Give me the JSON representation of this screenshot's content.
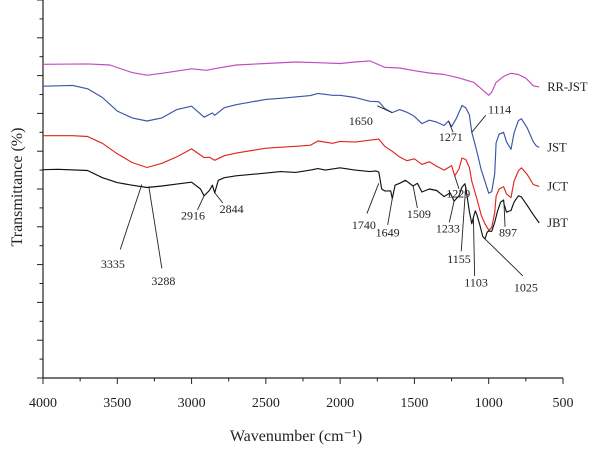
{
  "chart_data": {
    "type": "line",
    "title": "",
    "xlabel": "Wavenumber (cm⁻¹)",
    "ylabel": "Transmittance (%)",
    "xlim": [
      4000,
      500
    ],
    "x_reversed": true,
    "ylim": [
      0,
      100
    ],
    "x_ticks": [
      4000,
      3500,
      3000,
      2500,
      2000,
      1500,
      1000,
      500
    ],
    "y_tick_labels_shown": false,
    "grid": false,
    "legend": "labels-at-right-end",
    "series": [
      {
        "name": "RR-JST",
        "color": "#c34bc1",
        "points": [
          [
            4000,
            83.0
          ],
          [
            3700,
            83.1
          ],
          [
            3550,
            82.8
          ],
          [
            3400,
            80.8
          ],
          [
            3300,
            80.1
          ],
          [
            3200,
            80.6
          ],
          [
            3000,
            81.8
          ],
          [
            2900,
            81.4
          ],
          [
            2850,
            81.8
          ],
          [
            2700,
            82.8
          ],
          [
            2500,
            83.2
          ],
          [
            2300,
            83.6
          ],
          [
            2150,
            83.4
          ],
          [
            2000,
            83.2
          ],
          [
            1900,
            83.6
          ],
          [
            1800,
            83.9
          ],
          [
            1700,
            82.2
          ],
          [
            1600,
            82.0
          ],
          [
            1500,
            81.3
          ],
          [
            1400,
            80.7
          ],
          [
            1300,
            80.3
          ],
          [
            1200,
            79.4
          ],
          [
            1100,
            78.2
          ],
          [
            1050,
            76.5
          ],
          [
            1000,
            74.8
          ],
          [
            980,
            75.6
          ],
          [
            950,
            78.2
          ],
          [
            900,
            79.8
          ],
          [
            850,
            80.6
          ],
          [
            800,
            80.3
          ],
          [
            750,
            79.3
          ],
          [
            700,
            77.3
          ],
          [
            660,
            77.0
          ]
        ]
      },
      {
        "name": "JST",
        "color": "#3a55a8",
        "points": [
          [
            4000,
            77.2
          ],
          [
            3800,
            77.4
          ],
          [
            3700,
            76.5
          ],
          [
            3600,
            74.2
          ],
          [
            3500,
            70.6
          ],
          [
            3400,
            68.8
          ],
          [
            3300,
            68.0
          ],
          [
            3200,
            68.8
          ],
          [
            3100,
            71.0
          ],
          [
            3000,
            71.9
          ],
          [
            2916,
            69.0
          ],
          [
            2860,
            70.1
          ],
          [
            2844,
            69.5
          ],
          [
            2780,
            71.5
          ],
          [
            2700,
            72.3
          ],
          [
            2500,
            73.7
          ],
          [
            2400,
            74.0
          ],
          [
            2200,
            74.7
          ],
          [
            2150,
            75.3
          ],
          [
            2050,
            74.8
          ],
          [
            2000,
            74.8
          ],
          [
            1900,
            74.2
          ],
          [
            1800,
            73.2
          ],
          [
            1740,
            73.1
          ],
          [
            1700,
            71.3
          ],
          [
            1650,
            70.2
          ],
          [
            1600,
            71.0
          ],
          [
            1550,
            70.3
          ],
          [
            1500,
            69.2
          ],
          [
            1450,
            67.3
          ],
          [
            1400,
            68.2
          ],
          [
            1350,
            67.7
          ],
          [
            1300,
            66.8
          ],
          [
            1271,
            68.0
          ],
          [
            1250,
            66.5
          ],
          [
            1220,
            68.5
          ],
          [
            1180,
            72.1
          ],
          [
            1155,
            71.5
          ],
          [
            1130,
            69.6
          ],
          [
            1114,
            65.0
          ],
          [
            1080,
            60.0
          ],
          [
            1050,
            55.0
          ],
          [
            1025,
            52.0
          ],
          [
            1000,
            48.9
          ],
          [
            980,
            49.3
          ],
          [
            960,
            54.0
          ],
          [
            950,
            62.2
          ],
          [
            930,
            64.5
          ],
          [
            900,
            65.0
          ],
          [
            880,
            62.5
          ],
          [
            850,
            60.5
          ],
          [
            830,
            64.8
          ],
          [
            800,
            68.1
          ],
          [
            780,
            68.6
          ],
          [
            740,
            66.1
          ],
          [
            700,
            62.5
          ],
          [
            680,
            61.4
          ],
          [
            660,
            61.0
          ]
        ]
      },
      {
        "name": "JCT",
        "color": "#e0261f",
        "points": [
          [
            4000,
            64.1
          ],
          [
            3800,
            64.1
          ],
          [
            3700,
            63.9
          ],
          [
            3600,
            62.1
          ],
          [
            3500,
            59.3
          ],
          [
            3400,
            57.0
          ],
          [
            3300,
            55.7
          ],
          [
            3200,
            56.8
          ],
          [
            3100,
            58.5
          ],
          [
            3000,
            60.6
          ],
          [
            2916,
            58.3
          ],
          [
            2880,
            58.4
          ],
          [
            2844,
            57.6
          ],
          [
            2780,
            58.8
          ],
          [
            2700,
            59.5
          ],
          [
            2500,
            60.8
          ],
          [
            2300,
            61.3
          ],
          [
            2200,
            61.6
          ],
          [
            2150,
            62.7
          ],
          [
            2050,
            62.1
          ],
          [
            2000,
            62.6
          ],
          [
            1900,
            62.4
          ],
          [
            1800,
            62.9
          ],
          [
            1740,
            63.2
          ],
          [
            1700,
            61.3
          ],
          [
            1650,
            60.0
          ],
          [
            1600,
            58.5
          ],
          [
            1550,
            57.5
          ],
          [
            1500,
            58.0
          ],
          [
            1450,
            56.5
          ],
          [
            1400,
            57.2
          ],
          [
            1350,
            56.0
          ],
          [
            1300,
            55.0
          ],
          [
            1250,
            56.2
          ],
          [
            1229,
            53.5
          ],
          [
            1200,
            55.3
          ],
          [
            1180,
            58.2
          ],
          [
            1155,
            57.8
          ],
          [
            1130,
            55.7
          ],
          [
            1114,
            52.0
          ],
          [
            1080,
            47.5
          ],
          [
            1050,
            43.0
          ],
          [
            1025,
            40.8
          ],
          [
            1000,
            39.1
          ],
          [
            980,
            39.8
          ],
          [
            960,
            43.7
          ],
          [
            950,
            48.1
          ],
          [
            930,
            50.0
          ],
          [
            900,
            50.6
          ],
          [
            880,
            48.7
          ],
          [
            850,
            47.7
          ],
          [
            830,
            52.0
          ],
          [
            800,
            54.8
          ],
          [
            780,
            55.6
          ],
          [
            740,
            53.8
          ],
          [
            700,
            51.2
          ],
          [
            660,
            50.7
          ]
        ]
      },
      {
        "name": "JBT",
        "color": "#111111",
        "points": [
          [
            4000,
            55.1
          ],
          [
            3900,
            55.2
          ],
          [
            3700,
            54.9
          ],
          [
            3600,
            53.0
          ],
          [
            3500,
            51.7
          ],
          [
            3400,
            51.0
          ],
          [
            3300,
            50.4
          ],
          [
            3200,
            50.8
          ],
          [
            3100,
            51.3
          ],
          [
            3000,
            51.8
          ],
          [
            2940,
            50.0
          ],
          [
            2916,
            48.2
          ],
          [
            2880,
            49.6
          ],
          [
            2860,
            51.0
          ],
          [
            2844,
            49.0
          ],
          [
            2820,
            52.3
          ],
          [
            2780,
            53.0
          ],
          [
            2700,
            53.5
          ],
          [
            2500,
            54.2
          ],
          [
            2400,
            54.6
          ],
          [
            2300,
            54.4
          ],
          [
            2200,
            55.0
          ],
          [
            2150,
            55.4
          ],
          [
            2100,
            55.0
          ],
          [
            2000,
            55.6
          ],
          [
            1900,
            55.0
          ],
          [
            1800,
            54.6
          ],
          [
            1760,
            54.8
          ],
          [
            1740,
            54.5
          ],
          [
            1720,
            50.0
          ],
          [
            1700,
            49.5
          ],
          [
            1660,
            49.5
          ],
          [
            1649,
            47.5
          ],
          [
            1630,
            51.0
          ],
          [
            1600,
            51.5
          ],
          [
            1560,
            52.3
          ],
          [
            1509,
            50.8
          ],
          [
            1480,
            51.5
          ],
          [
            1450,
            49.2
          ],
          [
            1400,
            50.0
          ],
          [
            1350,
            49.6
          ],
          [
            1300,
            48.0
          ],
          [
            1260,
            49.0
          ],
          [
            1233,
            46.8
          ],
          [
            1200,
            48.2
          ],
          [
            1180,
            50.5
          ],
          [
            1160,
            51.4
          ],
          [
            1155,
            50.5
          ],
          [
            1130,
            44.0
          ],
          [
            1114,
            40.8
          ],
          [
            1103,
            42.5
          ],
          [
            1090,
            44.2
          ],
          [
            1080,
            43.3
          ],
          [
            1060,
            40.5
          ],
          [
            1040,
            37.4
          ],
          [
            1025,
            36.8
          ],
          [
            1010,
            38.6
          ],
          [
            1000,
            38.9
          ],
          [
            980,
            38.8
          ],
          [
            960,
            41.2
          ],
          [
            940,
            44.2
          ],
          [
            920,
            46.5
          ],
          [
            900,
            47.1
          ],
          [
            897,
            46.0
          ],
          [
            880,
            43.9
          ],
          [
            850,
            44.3
          ],
          [
            830,
            46.5
          ],
          [
            800,
            48.2
          ],
          [
            780,
            47.9
          ],
          [
            740,
            45.6
          ],
          [
            700,
            43.2
          ],
          [
            660,
            41.0
          ]
        ]
      }
    ],
    "annotations": [
      {
        "text": "1650",
        "x": 1650,
        "y": 70.2,
        "lx": 1750,
        "ly": 72.0,
        "tx": 1780,
        "ty": 68.0,
        "anchor": "end"
      },
      {
        "text": "1114",
        "x": 1114,
        "y": 65.0,
        "lx": 1020,
        "ly": 69.5,
        "tx": 1005,
        "ty": 71.0,
        "anchor": "start"
      },
      {
        "text": "1271",
        "x": 1271,
        "y": 68.0,
        "lx": 1240,
        "ly": 65.0,
        "tx": 1255,
        "ty": 63.8,
        "anchor": "middle"
      },
      {
        "text": "1229",
        "x": 1229,
        "y": 53.5,
        "lx": 1200,
        "ly": 50.0,
        "tx": 1205,
        "ty": 48.8,
        "anchor": "middle"
      },
      {
        "text": "3335",
        "x": 3335,
        "y": 51.2,
        "lx": 3480,
        "ly": 34.0,
        "tx": 3530,
        "ty": 30.2,
        "anchor": "middle"
      },
      {
        "text": "3288",
        "x": 3288,
        "y": 50.7,
        "lx": 3200,
        "ly": 29.0,
        "tx": 3190,
        "ty": 25.7,
        "anchor": "middle"
      },
      {
        "text": "2916",
        "x": 2916,
        "y": 48.2,
        "lx": 2960,
        "ly": 44.5,
        "tx": 2990,
        "ty": 43.0,
        "anchor": "middle"
      },
      {
        "text": "2844",
        "x": 2844,
        "y": 49.0,
        "lx": 2790,
        "ly": 46.3,
        "tx": 2730,
        "ty": 44.7,
        "anchor": "middle"
      },
      {
        "text": "1740",
        "x": 1740,
        "y": 51.5,
        "lx": 1820,
        "ly": 43.5,
        "tx": 1840,
        "ty": 40.5,
        "anchor": "middle"
      },
      {
        "text": "1649",
        "x": 1649,
        "y": 47.5,
        "lx": 1680,
        "ly": 40.5,
        "tx": 1680,
        "ty": 38.5,
        "anchor": "middle"
      },
      {
        "text": "1509",
        "x": 1509,
        "y": 50.8,
        "lx": 1480,
        "ly": 45.0,
        "tx": 1470,
        "ty": 43.4,
        "anchor": "middle"
      },
      {
        "text": "1233",
        "x": 1233,
        "y": 46.8,
        "lx": 1265,
        "ly": 41.2,
        "tx": 1275,
        "ty": 39.5,
        "anchor": "middle"
      },
      {
        "text": "1155",
        "x": 1155,
        "y": 50.5,
        "lx": 1185,
        "ly": 33.5,
        "tx": 1200,
        "ty": 31.5,
        "anchor": "middle"
      },
      {
        "text": "1103",
        "x": 1103,
        "y": 42.5,
        "lx": 1095,
        "ly": 27.0,
        "tx": 1085,
        "ty": 25.3,
        "anchor": "middle"
      },
      {
        "text": "1025",
        "x": 1025,
        "y": 36.8,
        "lx": 770,
        "ly": 27.0,
        "tx": 750,
        "ty": 24.0,
        "anchor": "middle"
      },
      {
        "text": "897",
        "x": 897,
        "y": 46.0,
        "lx": 890,
        "ly": 40.0,
        "tx": 870,
        "ty": 38.5,
        "anchor": "middle"
      }
    ]
  }
}
